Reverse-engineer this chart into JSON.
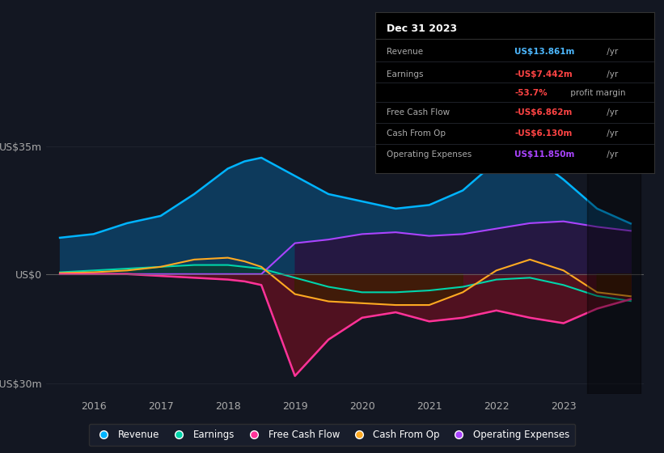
{
  "bg_color": "#131722",
  "grid_color": "#2a2e39",
  "zero_line_color": "#666666",
  "ylim": [
    -33,
    38
  ],
  "title": "Dec 31 2023",
  "years": [
    2015.5,
    2016.0,
    2016.5,
    2017.0,
    2017.5,
    2018.0,
    2018.25,
    2018.5,
    2019.0,
    2019.5,
    2020.0,
    2020.5,
    2021.0,
    2021.5,
    2022.0,
    2022.5,
    2023.0,
    2023.5,
    2024.0
  ],
  "revenue": [
    10,
    11,
    14,
    16,
    22,
    29,
    31,
    32,
    27,
    22,
    20,
    18,
    19,
    23,
    31,
    33,
    26,
    18,
    13.9
  ],
  "earnings": [
    0.5,
    1.0,
    1.5,
    2.0,
    2.5,
    2.5,
    2.0,
    1.5,
    -1.0,
    -3.5,
    -5.0,
    -5.0,
    -4.5,
    -3.5,
    -1.5,
    -1.0,
    -3.0,
    -6.0,
    -7.4
  ],
  "fcf": [
    0.0,
    0.0,
    0.0,
    -0.5,
    -1.0,
    -1.5,
    -2.0,
    -3.0,
    -28.0,
    -18.0,
    -12.0,
    -10.5,
    -13.0,
    -12.0,
    -10.0,
    -12.0,
    -13.5,
    -9.5,
    -6.9
  ],
  "cashfromop": [
    0.3,
    0.5,
    1.0,
    2.0,
    4.0,
    4.5,
    3.5,
    2.0,
    -5.5,
    -7.5,
    -8.0,
    -8.5,
    -8.5,
    -5.0,
    1.0,
    4.0,
    1.0,
    -5.0,
    -6.1
  ],
  "opex": [
    0,
    0,
    0,
    0,
    0,
    0,
    0,
    0,
    8.5,
    9.5,
    11.0,
    11.5,
    10.5,
    11.0,
    12.5,
    14.0,
    14.5,
    13.0,
    11.9
  ],
  "revenue_color": "#00b4ff",
  "revenue_fill": "#0d3a5c",
  "earnings_color": "#00d4aa",
  "earnings_fill_pos": "#0d3a30",
  "earnings_fill_neg": "#0d2a20",
  "fcf_color": "#ff3399",
  "fcf_fill_neg": "#5c1020",
  "cashfromop_color": "#ffaa22",
  "cashfromop_fill_neg": "#3a2000",
  "opex_color": "#aa44ff",
  "opex_fill": "#281540",
  "xtick_labels": [
    "2016",
    "2017",
    "2018",
    "2019",
    "2020",
    "2021",
    "2022",
    "2023"
  ],
  "xtick_vals": [
    2016,
    2017,
    2018,
    2019,
    2020,
    2021,
    2022,
    2023
  ],
  "legend": [
    {
      "label": "Revenue",
      "color": "#00b4ff"
    },
    {
      "label": "Earnings",
      "color": "#00d4aa"
    },
    {
      "label": "Free Cash Flow",
      "color": "#ff3399"
    },
    {
      "label": "Cash From Op",
      "color": "#ffaa22"
    },
    {
      "label": "Operating Expenses",
      "color": "#aa44ff"
    }
  ],
  "info_rows": [
    {
      "label": "Revenue",
      "value": "US$13.861m",
      "suffix": " /yr",
      "color": "#4db8ff"
    },
    {
      "label": "Earnings",
      "value": "-US$7.442m",
      "suffix": " /yr",
      "color": "#ff4444"
    },
    {
      "label": "",
      "value": "-53.7%",
      "suffix": " profit margin",
      "color": "#ff4444"
    },
    {
      "label": "Free Cash Flow",
      "value": "-US$6.862m",
      "suffix": " /yr",
      "color": "#ff4444"
    },
    {
      "label": "Cash From Op",
      "value": "-US$6.130m",
      "suffix": " /yr",
      "color": "#ff4444"
    },
    {
      "label": "Operating Expenses",
      "value": "US$11.850m",
      "suffix": " /yr",
      "color": "#aa44ff"
    }
  ]
}
